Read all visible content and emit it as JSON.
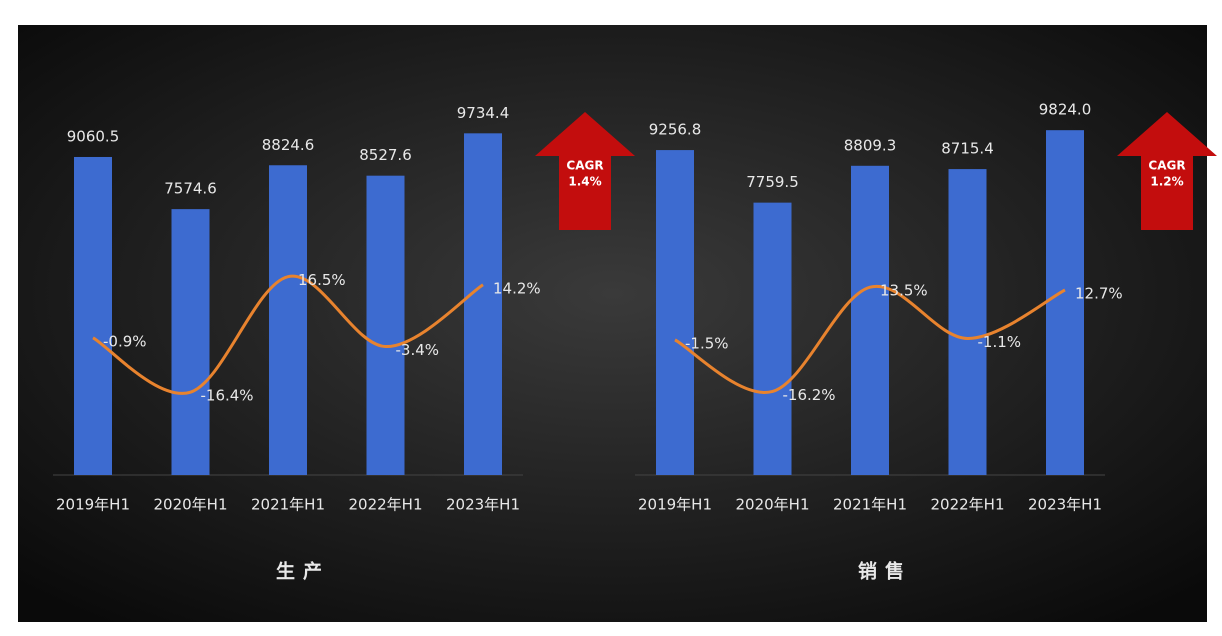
{
  "chart_data": [
    {
      "type": "bar",
      "title": "生产",
      "categories": [
        "2019年H1",
        "2020年H1",
        "2021年H1",
        "2022年H1",
        "2023年H1"
      ],
      "series": [
        {
          "type": "bar",
          "color": "#3d6bd0",
          "values": [
            9060.5,
            7574.6,
            8824.6,
            8527.6,
            9734.4
          ],
          "value_labels": [
            "9060.5",
            "7574.6",
            "8824.6",
            "8527.6",
            "9734.4"
          ]
        },
        {
          "type": "line",
          "axis": "y2",
          "color": "#e8832e",
          "values": [
            -0.9,
            -16.4,
            16.5,
            -3.4,
            14.2
          ],
          "value_labels": [
            "-0.9%",
            "-16.4%",
            "16.5%",
            "-3.4%",
            "14.2%"
          ]
        }
      ],
      "ylim": [
        0,
        10000
      ],
      "y2lim": [
        -40,
        60
      ],
      "annotation": [
        "CAGR",
        "1.4%"
      ]
    },
    {
      "type": "bar",
      "title": "销售",
      "categories": [
        "2019年H1",
        "2020年H1",
        "2021年H1",
        "2022年H1",
        "2023年H1"
      ],
      "series": [
        {
          "type": "bar",
          "color": "#3d6bd0",
          "values": [
            9256.8,
            7759.5,
            8809.3,
            8715.4,
            9824.0
          ],
          "value_labels": [
            "9256.8",
            "7759.5",
            "8809.3",
            "8715.4",
            "9824.0"
          ]
        },
        {
          "type": "line",
          "axis": "y2",
          "color": "#e8832e",
          "values": [
            -1.5,
            -16.2,
            13.5,
            -1.1,
            12.7
          ],
          "value_labels": [
            "-1.5%",
            "-16.2%",
            "13.5%",
            "-1.1%",
            "12.7%"
          ]
        }
      ],
      "ylim": [
        0,
        10000
      ],
      "y2lim": [
        -40,
        60
      ],
      "annotation": [
        "CAGR",
        "1.2%"
      ]
    }
  ]
}
